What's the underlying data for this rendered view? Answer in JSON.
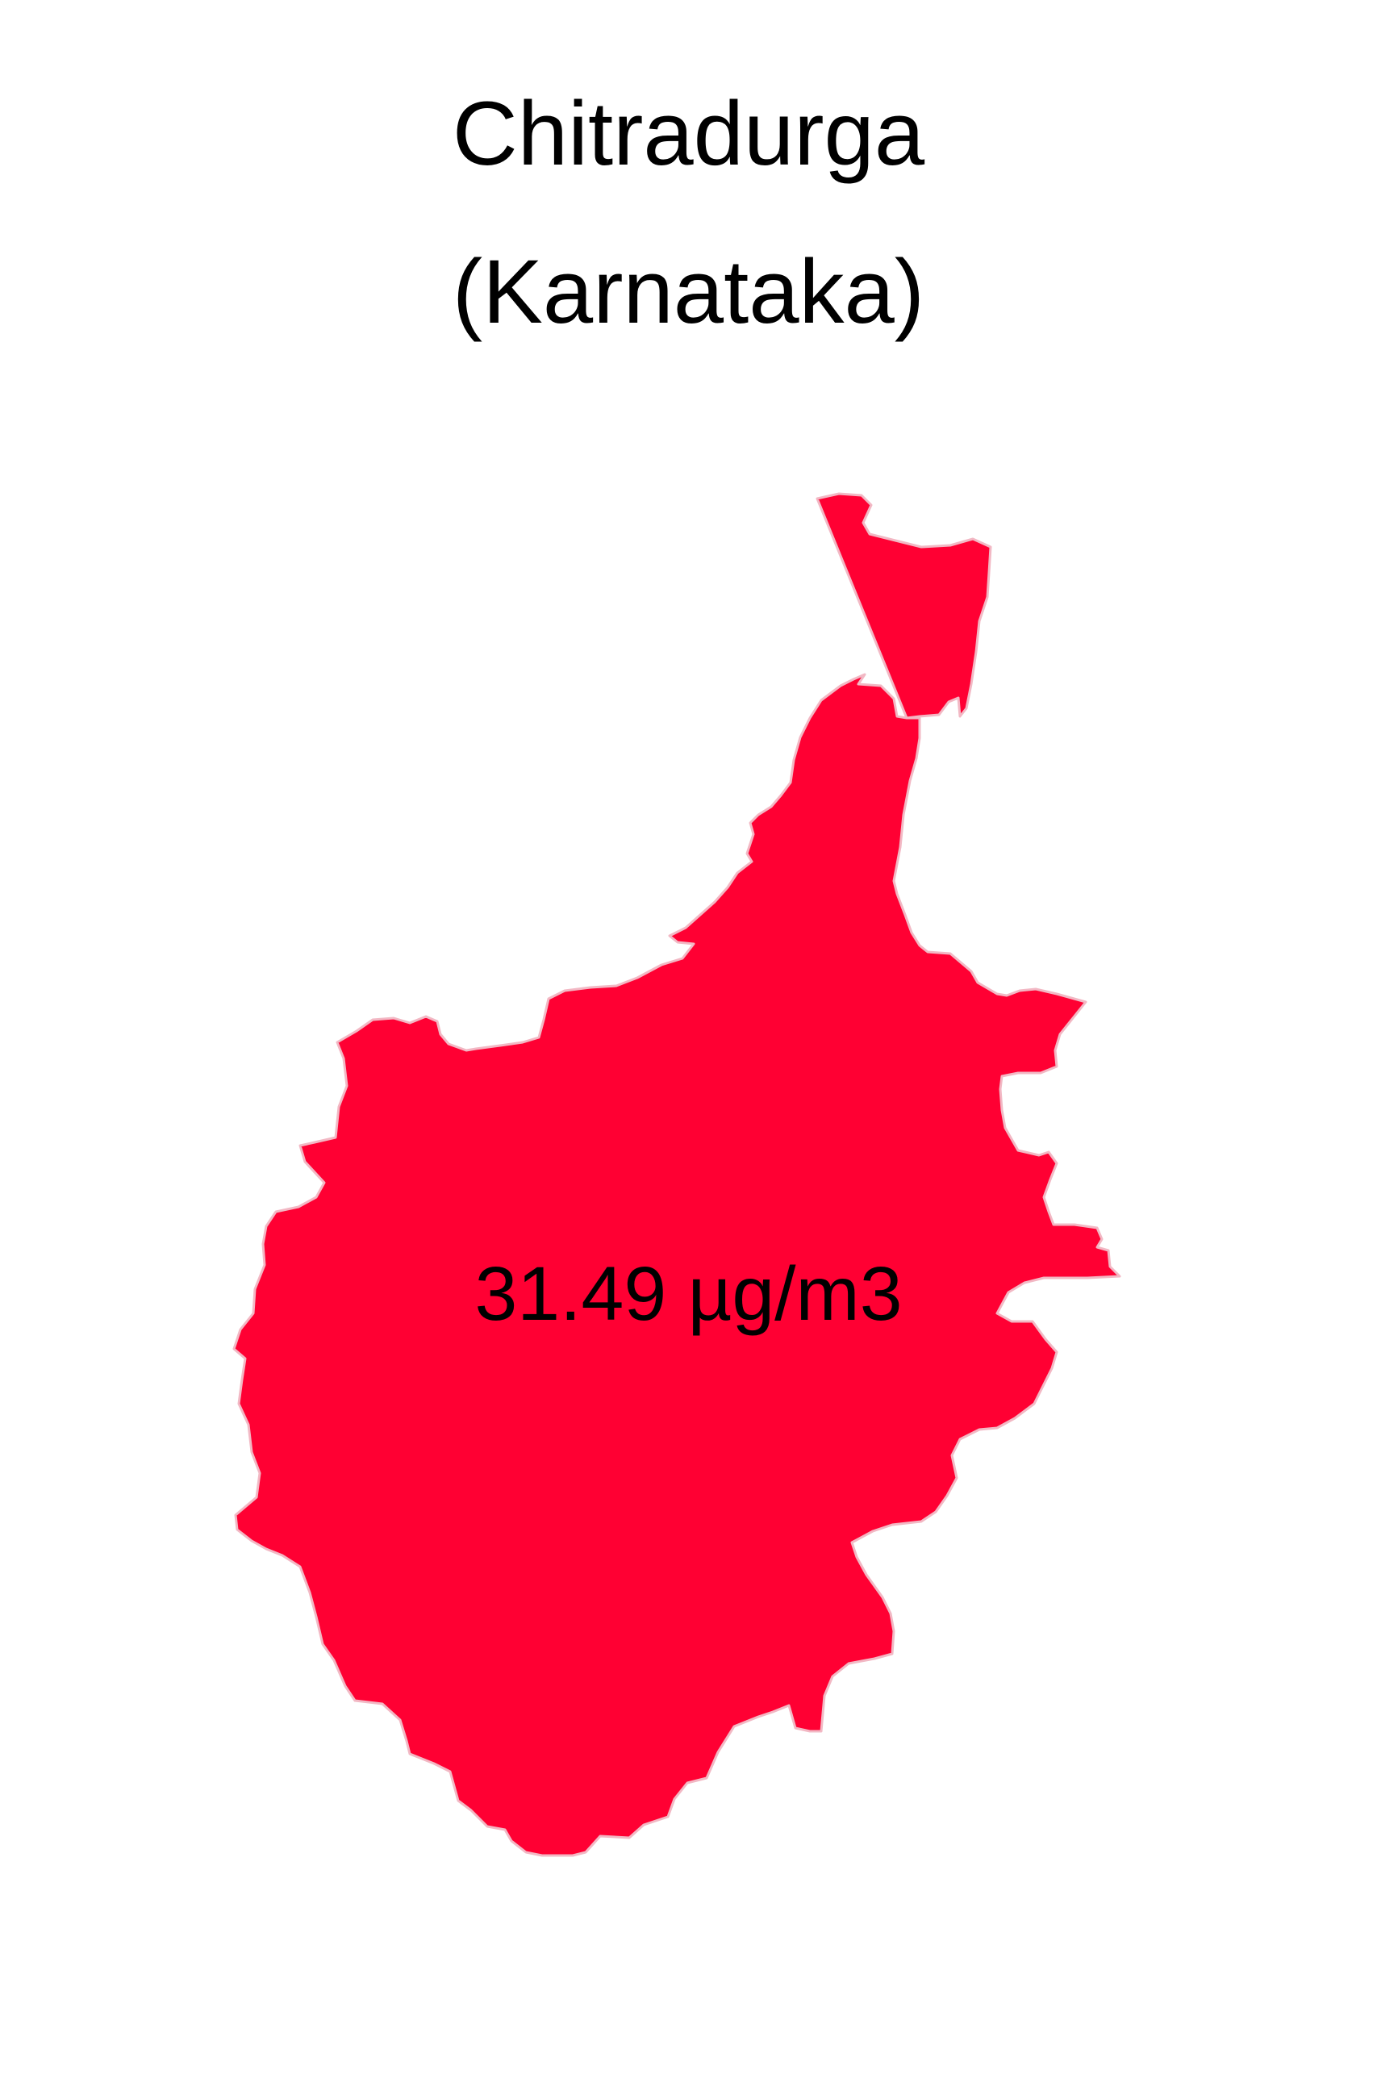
{
  "title": {
    "line1": "Chitradurga",
    "line2": "(Karnataka)"
  },
  "region": {
    "district": "Chitradurga",
    "state": "Karnataka",
    "value_label": "31.49 µg/m3",
    "value": 31.49,
    "unit": "µg/m3",
    "fill_color": "#ff0033",
    "border_color": "#f2b8c4"
  }
}
